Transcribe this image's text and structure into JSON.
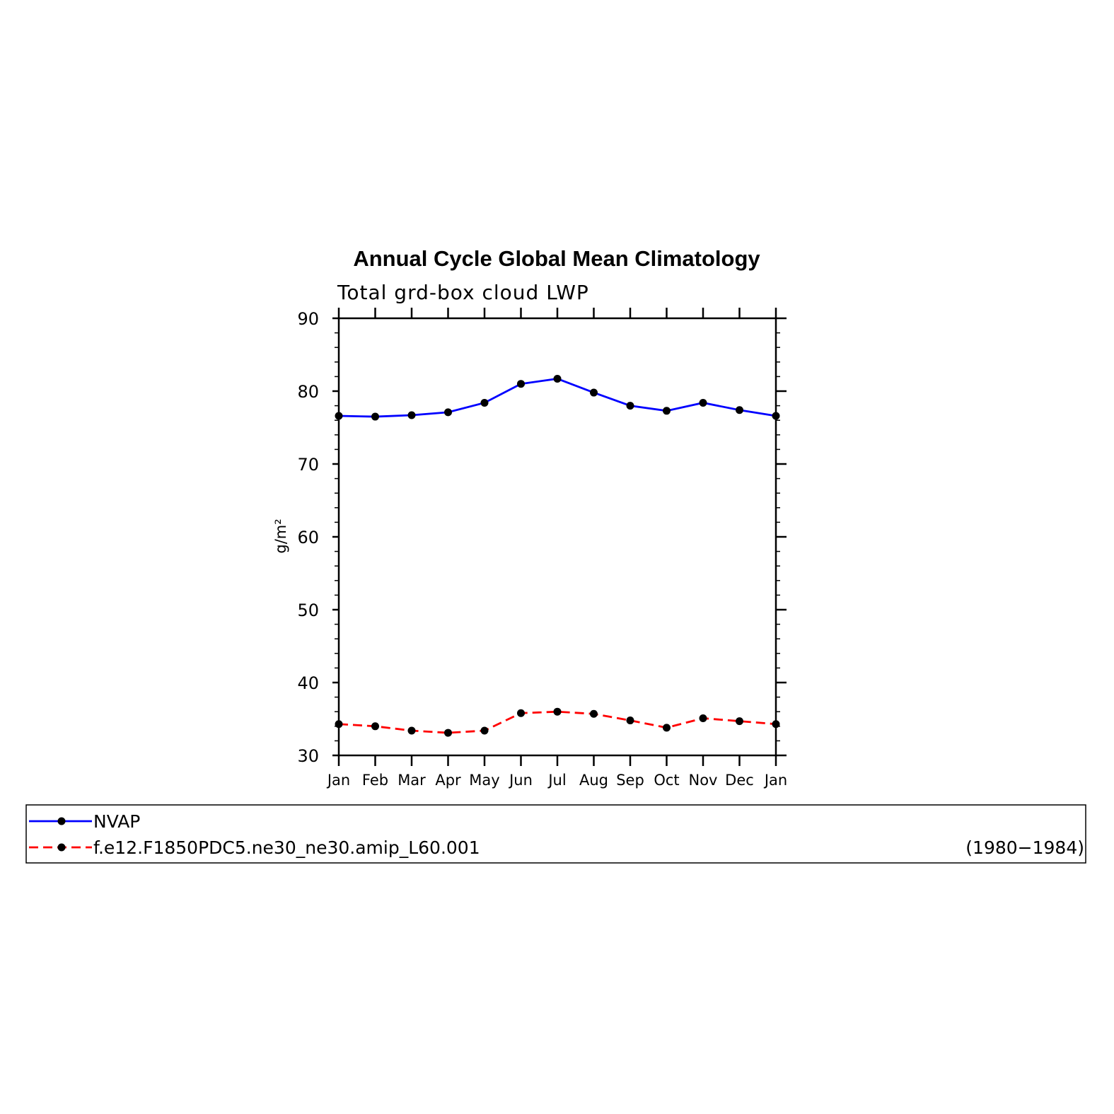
{
  "chart_data": {
    "type": "line",
    "title": "Annual Cycle Global Mean Climatology",
    "subtitle": "Total grd-box cloud LWP",
    "ylabel": "g/m²",
    "xlabel": "",
    "categories": [
      "Jan",
      "Feb",
      "Mar",
      "Apr",
      "May",
      "Jun",
      "Jul",
      "Aug",
      "Sep",
      "Oct",
      "Nov",
      "Dec",
      "Jan"
    ],
    "ylim": [
      30,
      90
    ],
    "yticks": [
      30,
      40,
      50,
      60,
      70,
      80,
      90
    ],
    "ytick_labels": [
      "30",
      "40",
      "50",
      "60",
      "70",
      "80",
      "90"
    ],
    "grid": false,
    "legend_position": "bottom",
    "series": [
      {
        "name": "NVAP",
        "color": "#0000ff",
        "dash": "solid",
        "marker": "filled-circle",
        "values": [
          76.6,
          76.5,
          76.7,
          77.1,
          78.4,
          81.0,
          81.7,
          79.8,
          78.0,
          77.3,
          78.4,
          77.4,
          76.6
        ]
      },
      {
        "name": "f.e12.F1850PDC5.ne30_ne30.amip_L60.001",
        "extra_label": "(1980−1984)",
        "color": "#ff0000",
        "dash": "dashed",
        "marker": "filled-circle",
        "values": [
          34.3,
          34.0,
          33.4,
          33.1,
          33.4,
          35.8,
          36.0,
          35.7,
          34.8,
          33.8,
          35.1,
          34.7,
          34.3
        ]
      }
    ]
  }
}
